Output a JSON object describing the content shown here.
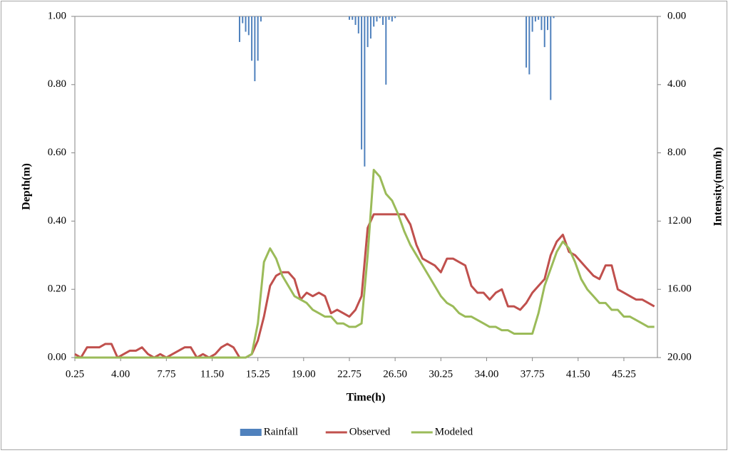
{
  "chart_data": {
    "type": "line",
    "x_label": "Time(h)",
    "y_label": "Depth(m)",
    "y2_label": "Intensity(mm/h)",
    "xlim": [
      0.25,
      48
    ],
    "xticks": [
      0.25,
      {
        "value": 4,
        "label": "4.00"
      },
      {
        "value": 7.75,
        "label": "7.75"
      },
      {
        "value": 11.5,
        "label": "11.50"
      },
      {
        "value": 15.25,
        "label": "15.25"
      },
      {
        "value": 19,
        "label": "19.00"
      },
      {
        "value": 22.75,
        "label": "22.75"
      },
      {
        "value": 26.5,
        "label": "26.50"
      },
      {
        "value": 30.25,
        "label": "30.25"
      },
      {
        "value": 34,
        "label": "34.00"
      },
      {
        "value": 37.75,
        "label": "37.75"
      },
      {
        "value": 41.5,
        "label": "41.50"
      },
      {
        "value": 45.25,
        "label": "45.25"
      }
    ],
    "ylim": [
      0,
      1
    ],
    "yticks": [
      {
        "value": 0,
        "label": "0.00"
      },
      {
        "value": 0.2,
        "label": "0.20"
      },
      {
        "value": 0.4,
        "label": "0.40"
      },
      {
        "value": 0.6,
        "label": "0.60"
      },
      {
        "value": 0.8,
        "label": "0.80"
      },
      {
        "value": 1,
        "label": "1.00"
      }
    ],
    "y2lim": [
      20,
      0
    ],
    "y2ticks": [
      {
        "value": 0,
        "label": "0.00"
      },
      {
        "value": 4,
        "label": "4.00"
      },
      {
        "value": 8,
        "label": "8.00"
      },
      {
        "value": 12,
        "label": "12.00"
      },
      {
        "value": 16,
        "label": "16.00"
      },
      {
        "value": 20,
        "label": "20.00"
      }
    ],
    "legend": "bottom",
    "x": [
      0.25,
      0.75,
      1.25,
      1.75,
      2.25,
      2.75,
      3.25,
      3.75,
      4.25,
      4.75,
      5.25,
      5.75,
      6.25,
      6.75,
      7.25,
      7.75,
      8.25,
      8.75,
      9.25,
      9.75,
      10.25,
      10.75,
      11.25,
      11.75,
      12.25,
      12.75,
      13.25,
      13.75,
      14.25,
      14.75,
      15.25,
      15.75,
      16.25,
      16.75,
      17.25,
      17.75,
      18.25,
      18.75,
      19.25,
      19.75,
      20.25,
      20.75,
      21.25,
      21.75,
      22.25,
      22.75,
      23.25,
      23.75,
      24.25,
      24.75,
      25.25,
      25.75,
      26.25,
      26.75,
      27.25,
      27.75,
      28.25,
      28.75,
      29.25,
      29.75,
      30.25,
      30.75,
      31.25,
      31.75,
      32.25,
      32.75,
      33.25,
      33.75,
      34.25,
      34.75,
      35.25,
      35.75,
      36.25,
      36.75,
      37.25,
      37.75,
      38.25,
      38.75,
      39.25,
      39.75,
      40.25,
      40.75,
      41.25,
      41.75,
      42.25,
      42.75,
      43.25,
      43.75,
      44.25,
      44.75,
      45.25,
      45.75,
      46.25,
      46.75,
      47.25,
      47.75
    ],
    "series": [
      {
        "name": "Rainfall",
        "type": "bar",
        "axis": "y2",
        "color": "#4f81bd",
        "x": [
          13.75,
          14,
          14.25,
          14.5,
          14.75,
          15,
          15.25,
          15.5,
          22.75,
          23,
          23.25,
          23.5,
          23.75,
          24,
          24.25,
          24.5,
          24.75,
          25,
          25.25,
          25.5,
          25.75,
          26,
          26.25,
          26.5,
          37.25,
          37.5,
          37.75,
          38,
          38.25,
          38.5,
          38.75,
          39,
          39.25,
          39.5
        ],
        "values": [
          1.5,
          0.4,
          0.9,
          1.1,
          2.6,
          3.8,
          2.6,
          0.3,
          0.2,
          0.2,
          0.5,
          1.0,
          7.8,
          8.8,
          1.8,
          1.3,
          0.6,
          0.3,
          0.1,
          0.5,
          4.0,
          0.2,
          0.3,
          0.1,
          3.0,
          3.4,
          0.9,
          0.3,
          0.2,
          0.8,
          1.8,
          0.8,
          4.9,
          0.1
        ]
      },
      {
        "name": "Observed",
        "type": "line",
        "color": "#c0504d",
        "values": [
          0.01,
          0,
          0.03,
          0.03,
          0.03,
          0.04,
          0.04,
          0,
          0.01,
          0.02,
          0.02,
          0.03,
          0.01,
          0,
          0.01,
          0,
          0.01,
          0.02,
          0.03,
          0.03,
          0,
          0.01,
          0,
          0.01,
          0.03,
          0.04,
          0.03,
          0,
          0,
          0.01,
          0.05,
          0.12,
          0.21,
          0.24,
          0.25,
          0.25,
          0.23,
          0.17,
          0.19,
          0.18,
          0.19,
          0.18,
          0.13,
          0.14,
          0.13,
          0.12,
          0.14,
          0.18,
          0.38,
          0.42,
          0.42,
          0.42,
          0.42,
          0.42,
          0.42,
          0.39,
          0.33,
          0.29,
          0.28,
          0.27,
          0.25,
          0.29,
          0.29,
          0.28,
          0.27,
          0.21,
          0.19,
          0.19,
          0.17,
          0.19,
          0.2,
          0.15,
          0.15,
          0.14,
          0.16,
          0.19,
          0.21,
          0.23,
          0.3,
          0.34,
          0.36,
          0.31,
          0.3,
          0.28,
          0.26,
          0.24,
          0.23,
          0.27,
          0.27,
          0.2,
          0.19,
          0.18,
          0.17,
          0.17,
          0.16,
          0.15
        ]
      },
      {
        "name": "Modeled",
        "type": "line",
        "color": "#9bbb59",
        "values": [
          0,
          0,
          0,
          0,
          0,
          0,
          0,
          0,
          0,
          0,
          0,
          0,
          0,
          0,
          0,
          0,
          0,
          0,
          0,
          0,
          0,
          0,
          0,
          0,
          0,
          0,
          0,
          0,
          0,
          0.01,
          0.1,
          0.28,
          0.32,
          0.29,
          0.24,
          0.21,
          0.18,
          0.17,
          0.16,
          0.14,
          0.13,
          0.12,
          0.12,
          0.1,
          0.1,
          0.09,
          0.09,
          0.1,
          0.3,
          0.55,
          0.53,
          0.48,
          0.46,
          0.42,
          0.37,
          0.33,
          0.3,
          0.27,
          0.24,
          0.21,
          0.18,
          0.16,
          0.15,
          0.13,
          0.12,
          0.12,
          0.11,
          0.1,
          0.09,
          0.09,
          0.08,
          0.08,
          0.07,
          0.07,
          0.07,
          0.07,
          0.13,
          0.21,
          0.26,
          0.31,
          0.34,
          0.32,
          0.28,
          0.23,
          0.2,
          0.18,
          0.16,
          0.16,
          0.14,
          0.14,
          0.12,
          0.12,
          0.11,
          0.1,
          0.09,
          0.09
        ]
      }
    ]
  }
}
